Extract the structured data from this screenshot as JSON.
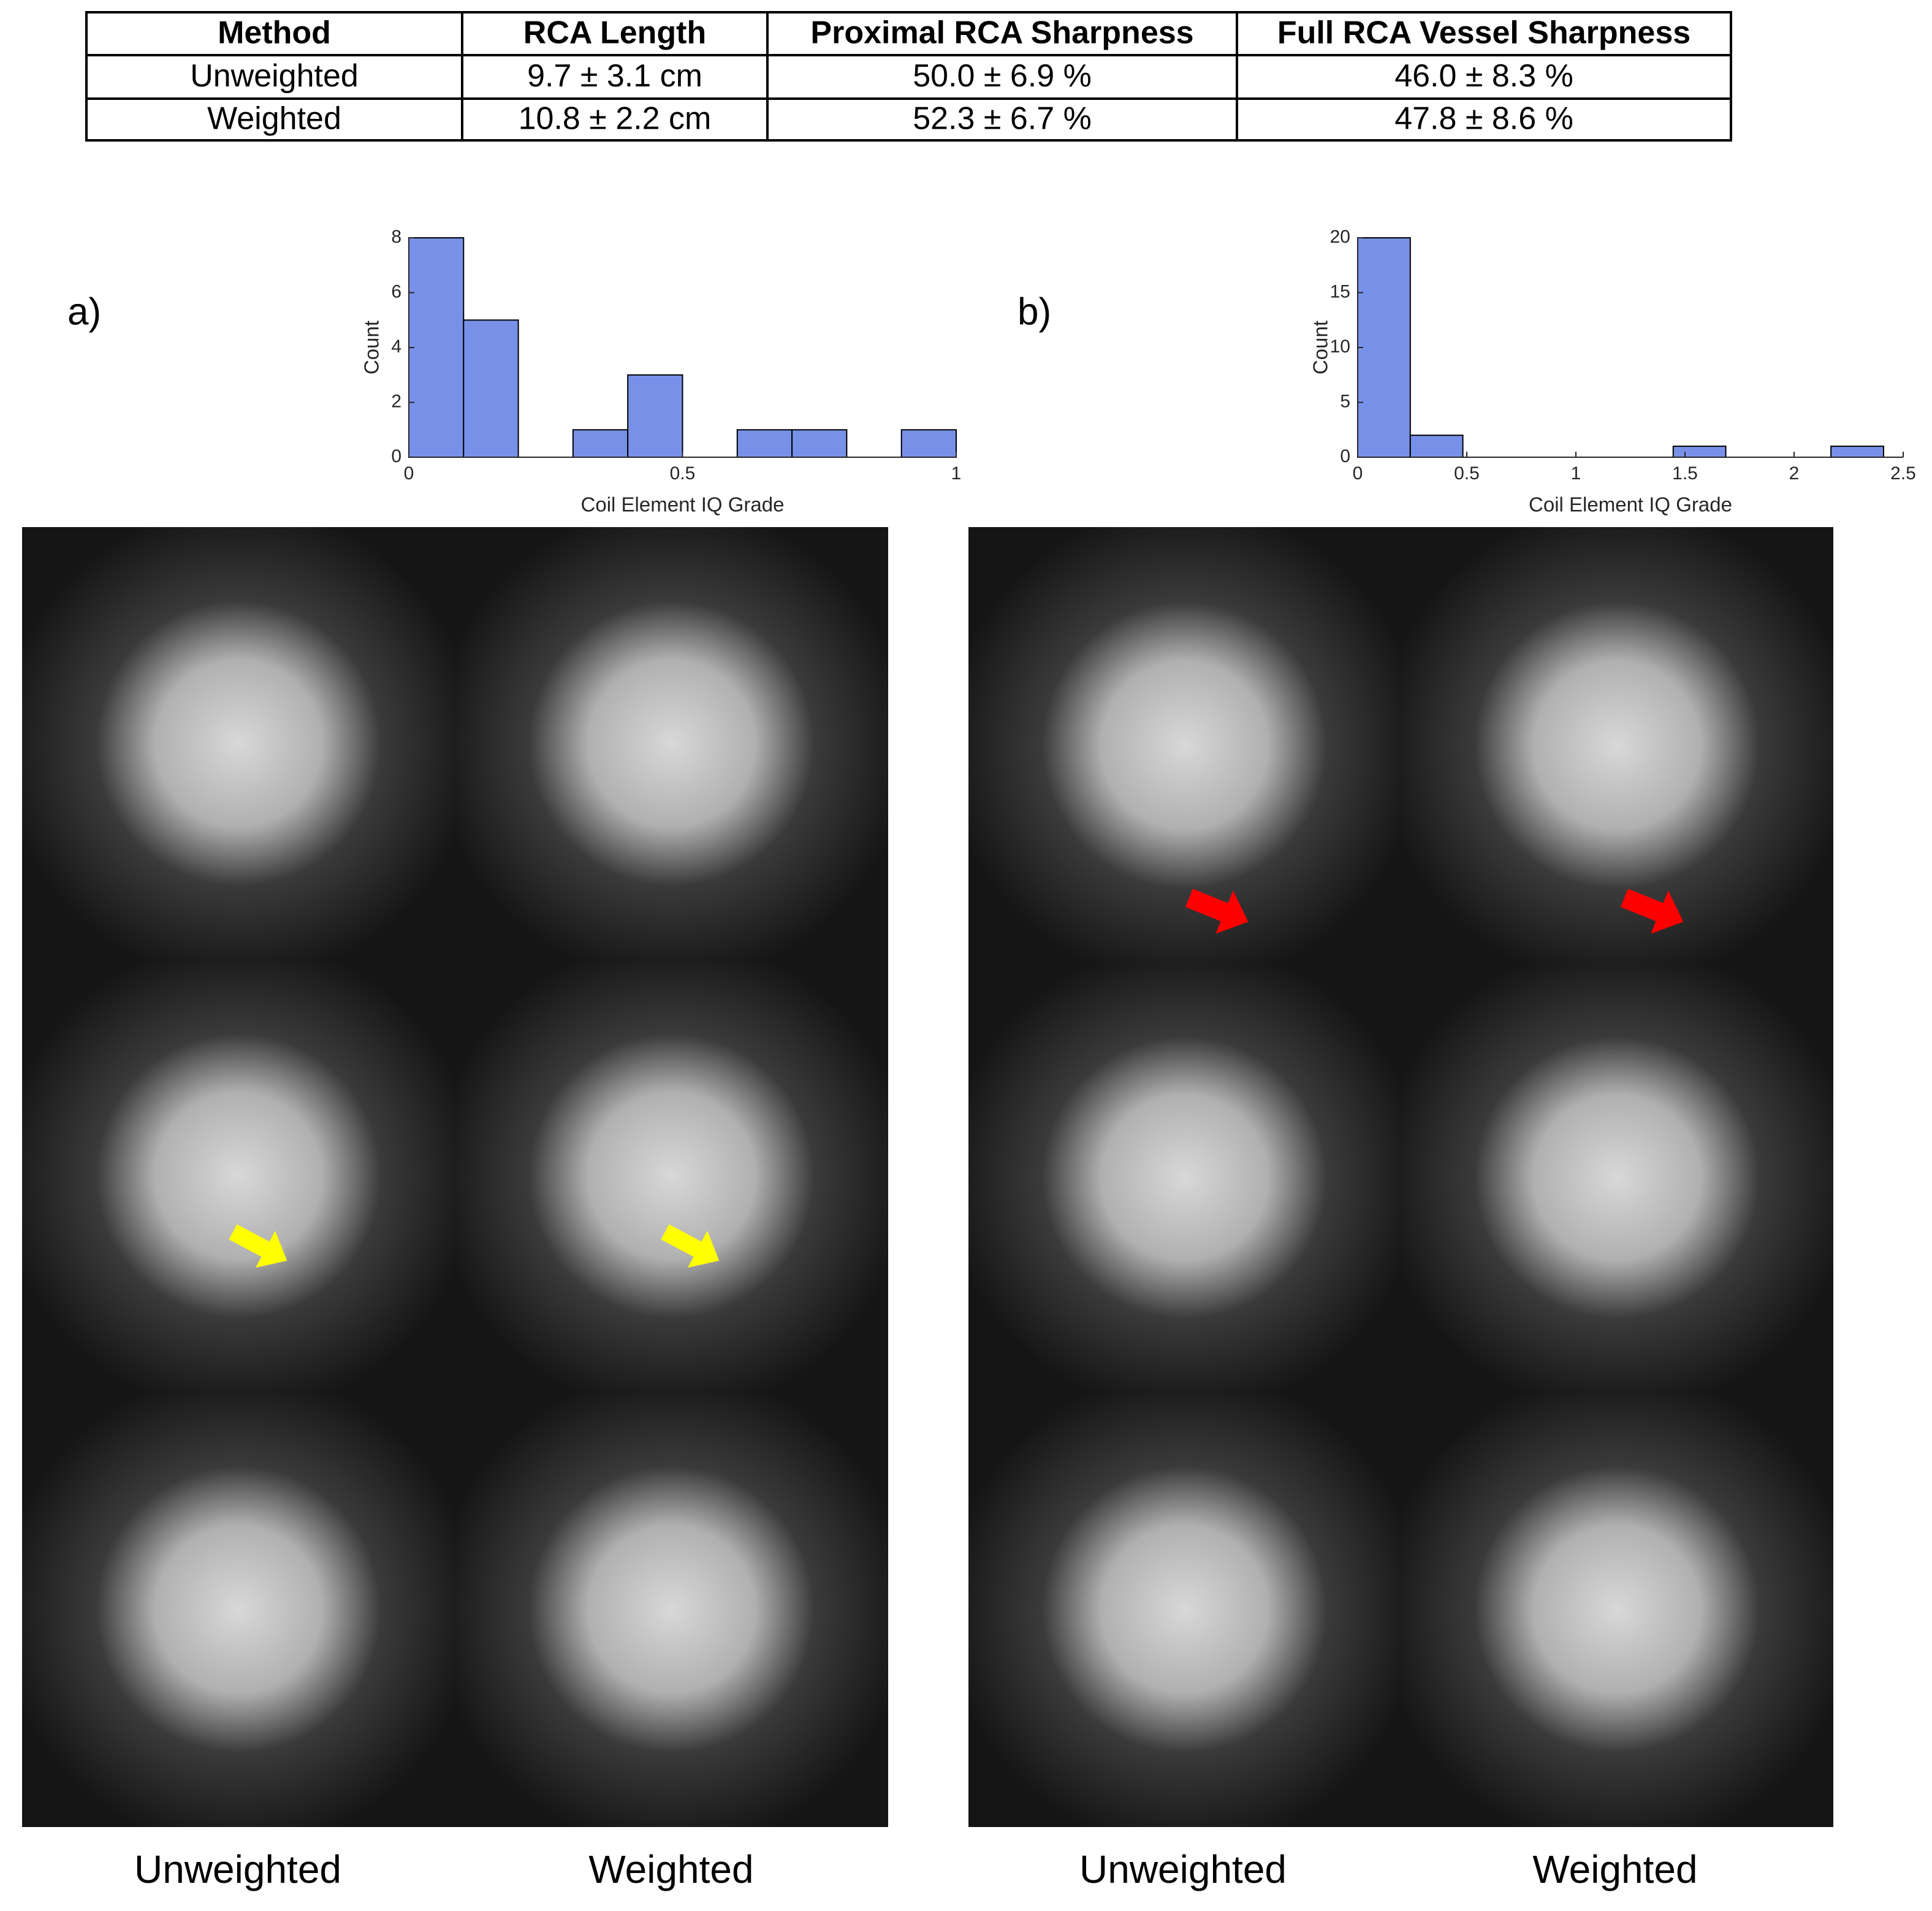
{
  "table": {
    "header": [
      "Method",
      "RCA Length",
      "Proximal RCA Sharpness",
      "Full RCA Vessel Sharpness"
    ],
    "rows": [
      [
        "Unweighted",
        "9.7 ± 3.1 cm",
        "50.0 ± 6.9 %",
        "46.0 ± 8.3 %"
      ],
      [
        "Weighted",
        "10.8 ± 2.2 cm",
        "52.3 ± 6.7 %",
        "47.8 ± 8.6 %"
      ]
    ]
  },
  "panel_labels": [
    "a)",
    "b)"
  ],
  "image_labels": [
    "Unweighted",
    "Weighted",
    "Unweighted",
    "Weighted"
  ],
  "chart_data": [
    {
      "type": "histogram",
      "xlabel": "Coil Element IQ Grade",
      "ylabel": "Count",
      "color": "#7891e8",
      "bins": [
        0,
        0.1,
        0.2,
        0.3,
        0.4,
        0.5,
        0.6,
        0.7,
        0.8,
        0.9,
        1
      ],
      "values": [
        8,
        5,
        0,
        1,
        3,
        0,
        1,
        1,
        0,
        1
      ],
      "xlim": [
        0,
        1
      ],
      "xticks": [
        0,
        0.5,
        1
      ],
      "ylim": [
        0,
        8
      ],
      "yticks": [
        0,
        2,
        4,
        6,
        8
      ]
    },
    {
      "type": "histogram",
      "xlabel": "Coil Element IQ Grade",
      "ylabel": "Count",
      "color": "#7891e8",
      "bins": [
        0,
        0.241,
        0.482,
        0.723,
        0.964,
        1.205,
        1.446,
        1.687,
        1.928,
        2.169,
        2.41
      ],
      "values": [
        20,
        2,
        0,
        0,
        0,
        0,
        1,
        0,
        0,
        1
      ],
      "xlim": [
        0,
        2.5
      ],
      "xticks": [
        0,
        0.5,
        1,
        1.5,
        2,
        2.5
      ],
      "ylim": [
        0,
        20
      ],
      "yticks": [
        0,
        5,
        10,
        15,
        20
      ]
    }
  ]
}
